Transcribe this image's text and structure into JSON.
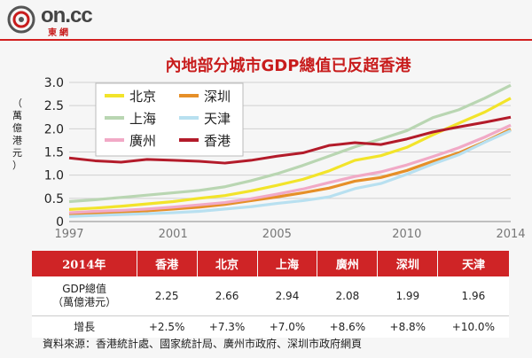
{
  "brand": {
    "name": "on.cc",
    "sub": "東網"
  },
  "colors": {
    "accent": "#cf2426"
  },
  "chart_data": {
    "type": "line",
    "title": "內地部分城市GDP總值已反超香港",
    "ylabel": "（萬億港元）",
    "xlabel": "",
    "ylim": [
      0,
      3.0
    ],
    "xlim": [
      1997,
      2014
    ],
    "y_ticks": [
      "0",
      "0.5",
      "1.0",
      "1.5",
      "2.0",
      "2.5",
      "3.0"
    ],
    "x_ticks": [
      "1997",
      "2001",
      "2005",
      "2010",
      "2014"
    ],
    "x": [
      1997,
      1998,
      1999,
      2000,
      2001,
      2002,
      2003,
      2004,
      2005,
      2006,
      2007,
      2008,
      2009,
      2010,
      2011,
      2012,
      2013,
      2014
    ],
    "series": [
      {
        "name": "北京",
        "color": "#f2e42a",
        "values": [
          0.26,
          0.29,
          0.33,
          0.38,
          0.43,
          0.5,
          0.56,
          0.66,
          0.78,
          0.91,
          1.09,
          1.32,
          1.42,
          1.6,
          1.87,
          2.12,
          2.36,
          2.66
        ]
      },
      {
        "name": "深圳",
        "color": "#e68f28",
        "values": [
          0.16,
          0.18,
          0.2,
          0.23,
          0.27,
          0.31,
          0.37,
          0.45,
          0.53,
          0.62,
          0.72,
          0.87,
          0.95,
          1.1,
          1.3,
          1.48,
          1.72,
          1.99
        ]
      },
      {
        "name": "上海",
        "color": "#b9d6b2",
        "values": [
          0.43,
          0.47,
          0.52,
          0.57,
          0.62,
          0.67,
          0.75,
          0.88,
          1.03,
          1.21,
          1.41,
          1.61,
          1.78,
          1.96,
          2.24,
          2.41,
          2.66,
          2.94
        ]
      },
      {
        "name": "天津",
        "color": "#b8e0f0",
        "values": [
          0.11,
          0.13,
          0.15,
          0.17,
          0.19,
          0.22,
          0.27,
          0.32,
          0.39,
          0.45,
          0.53,
          0.71,
          0.82,
          1.02,
          1.24,
          1.44,
          1.71,
          1.96
        ]
      },
      {
        "name": "廣州",
        "color": "#f1a9c6",
        "values": [
          0.19,
          0.22,
          0.24,
          0.27,
          0.31,
          0.36,
          0.41,
          0.49,
          0.59,
          0.7,
          0.84,
          0.97,
          1.07,
          1.22,
          1.4,
          1.59,
          1.82,
          2.08
        ]
      },
      {
        "name": "香港",
        "color": "#b31b2a",
        "values": [
          1.37,
          1.31,
          1.28,
          1.34,
          1.32,
          1.3,
          1.26,
          1.32,
          1.41,
          1.48,
          1.64,
          1.7,
          1.66,
          1.78,
          1.93,
          2.04,
          2.14,
          2.25
        ]
      }
    ]
  },
  "table": {
    "year_label": "2014年",
    "cities": [
      "香港",
      "北京",
      "上海",
      "廣州",
      "深圳",
      "天津"
    ],
    "gdp_label": "GDP總值",
    "gdp_unit": "（萬億港元）",
    "gdp": [
      "2.25",
      "2.66",
      "2.94",
      "2.08",
      "1.99",
      "1.96"
    ],
    "growth_label": "增長",
    "growth": [
      "+2.5%",
      "+7.3%",
      "+7.0%",
      "+8.6%",
      "+8.8%",
      "+10.0%"
    ]
  },
  "source": "資料來源：香港統計處、國家統計局、廣州市政府、深圳市政府網頁"
}
